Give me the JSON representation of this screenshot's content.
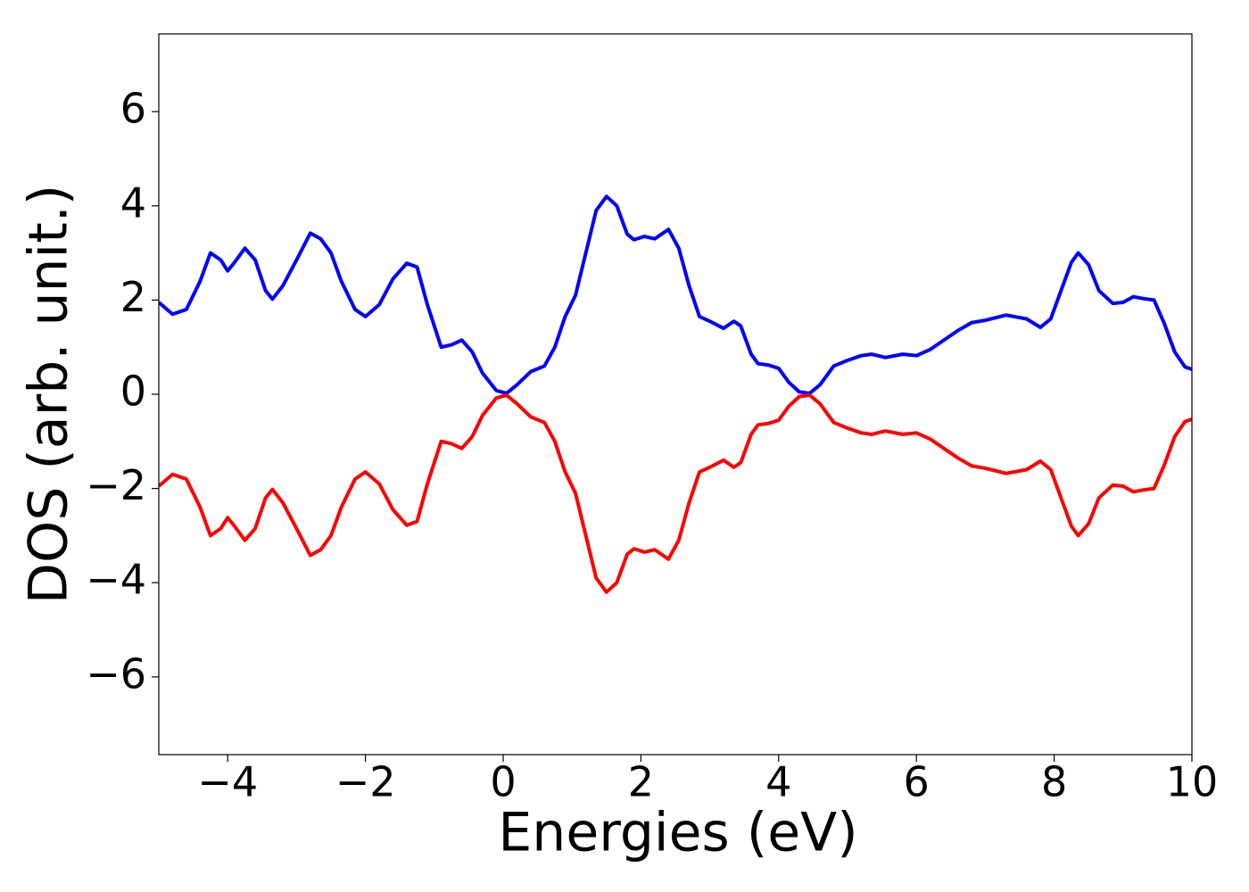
{
  "chart_data": {
    "type": "line",
    "xlabel": "Energies (eV)",
    "ylabel": "DOS (arb. unit.)",
    "x": [
      -5,
      -4.8,
      -4.6,
      -4.4,
      -4.25,
      -4.1,
      -4.0,
      -3.9,
      -3.75,
      -3.6,
      -3.45,
      -3.35,
      -3.2,
      -3.0,
      -2.8,
      -2.65,
      -2.5,
      -2.35,
      -2.15,
      -2.0,
      -1.8,
      -1.6,
      -1.4,
      -1.25,
      -1.1,
      -0.9,
      -0.75,
      -0.6,
      -0.45,
      -0.3,
      -0.1,
      0.05,
      0.2,
      0.4,
      0.6,
      0.75,
      0.9,
      1.05,
      1.2,
      1.35,
      1.5,
      1.65,
      1.8,
      1.9,
      2.05,
      2.2,
      2.4,
      2.55,
      2.7,
      2.85,
      3.0,
      3.2,
      3.35,
      3.45,
      3.6,
      3.7,
      3.85,
      4.0,
      4.15,
      4.3,
      4.45,
      4.6,
      4.8,
      5.0,
      5.2,
      5.35,
      5.55,
      5.8,
      6.0,
      6.2,
      6.4,
      6.6,
      6.8,
      7.0,
      7.3,
      7.6,
      7.8,
      7.95,
      8.1,
      8.25,
      8.35,
      8.5,
      8.65,
      8.85,
      9.0,
      9.15,
      9.3,
      9.45,
      9.6,
      9.75,
      9.9,
      10.0
    ],
    "series": [
      {
        "color": "#0000ff",
        "values": [
          1.95,
          1.7,
          1.8,
          2.4,
          3.0,
          2.85,
          2.62,
          2.8,
          3.1,
          2.85,
          2.2,
          2.02,
          2.3,
          2.85,
          3.42,
          3.3,
          3.0,
          2.4,
          1.8,
          1.65,
          1.9,
          2.45,
          2.78,
          2.7,
          1.9,
          1.0,
          1.05,
          1.15,
          0.9,
          0.45,
          0.08,
          0.02,
          0.2,
          0.48,
          0.6,
          1.0,
          1.65,
          2.1,
          3.0,
          3.9,
          4.2,
          4.0,
          3.4,
          3.28,
          3.35,
          3.3,
          3.5,
          3.1,
          2.3,
          1.65,
          1.55,
          1.4,
          1.55,
          1.45,
          0.85,
          0.65,
          0.62,
          0.55,
          0.25,
          0.05,
          0.02,
          0.2,
          0.6,
          0.72,
          0.82,
          0.85,
          0.78,
          0.85,
          0.82,
          0.95,
          1.15,
          1.35,
          1.52,
          1.57,
          1.68,
          1.6,
          1.42,
          1.6,
          2.2,
          2.8,
          3.0,
          2.75,
          2.2,
          1.93,
          1.95,
          2.07,
          2.03,
          2.0,
          1.5,
          0.9,
          0.58,
          0.53
        ]
      },
      {
        "color": "#ff0000",
        "values": [
          -1.95,
          -1.7,
          -1.8,
          -2.4,
          -3.0,
          -2.85,
          -2.62,
          -2.8,
          -3.1,
          -2.85,
          -2.2,
          -2.02,
          -2.3,
          -2.85,
          -3.42,
          -3.3,
          -3.0,
          -2.4,
          -1.8,
          -1.65,
          -1.9,
          -2.45,
          -2.78,
          -2.7,
          -1.9,
          -1.0,
          -1.05,
          -1.15,
          -0.9,
          -0.45,
          -0.08,
          -0.02,
          -0.2,
          -0.48,
          -0.6,
          -1.0,
          -1.65,
          -2.1,
          -3.0,
          -3.9,
          -4.2,
          -4.0,
          -3.4,
          -3.28,
          -3.35,
          -3.3,
          -3.5,
          -3.1,
          -2.3,
          -1.65,
          -1.55,
          -1.4,
          -1.55,
          -1.45,
          -0.85,
          -0.65,
          -0.62,
          -0.55,
          -0.25,
          -0.05,
          -0.02,
          -0.2,
          -0.6,
          -0.72,
          -0.82,
          -0.85,
          -0.78,
          -0.85,
          -0.82,
          -0.95,
          -1.15,
          -1.35,
          -1.52,
          -1.57,
          -1.68,
          -1.6,
          -1.42,
          -1.6,
          -2.2,
          -2.8,
          -3.0,
          -2.75,
          -2.2,
          -1.93,
          -1.95,
          -2.07,
          -2.03,
          -2.0,
          -1.5,
          -0.9,
          -0.58,
          -0.53
        ]
      }
    ],
    "xlim": [
      -5,
      10
    ],
    "ylim": [
      -7.65,
      7.65
    ],
    "xticks": [
      {
        "value": -4,
        "label": "−4"
      },
      {
        "value": -2,
        "label": "−2"
      },
      0,
      2,
      4,
      6,
      8,
      10
    ],
    "yticks": [
      {
        "value": -6,
        "label": "−6"
      },
      {
        "value": -4,
        "label": "−4"
      },
      {
        "value": -2,
        "label": "−2"
      },
      0,
      2,
      4,
      6
    ],
    "grid": false
  }
}
